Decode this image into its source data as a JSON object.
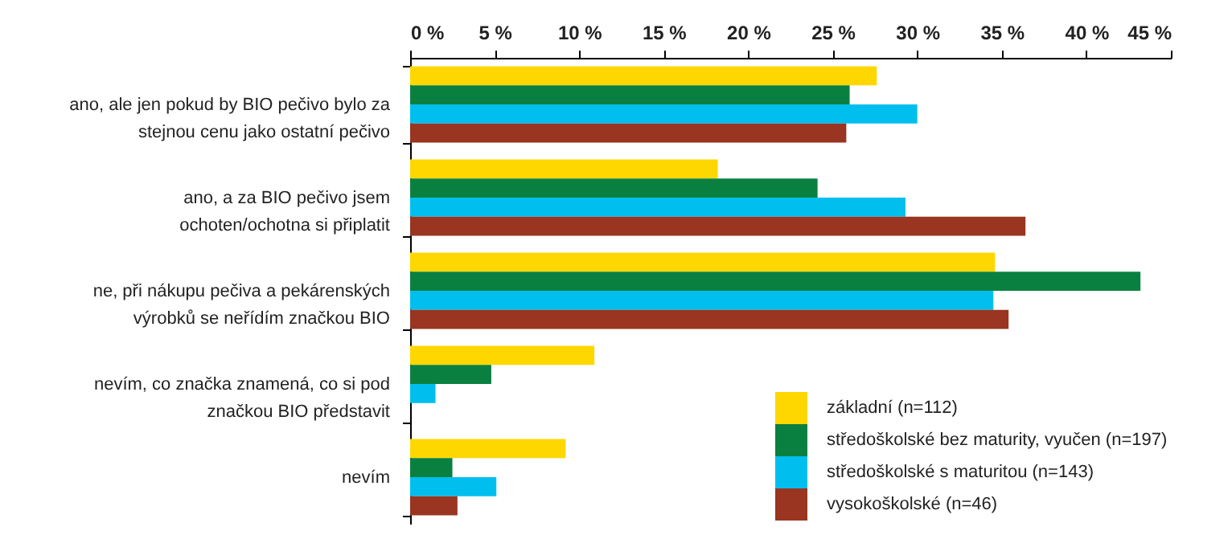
{
  "chart_data": {
    "type": "bar",
    "orientation": "horizontal",
    "categories": [
      "ano, ale jen pokud by BIO pečivo bylo za stejnou cenu jako ostatní pečivo",
      "ano, a za BIO pečivo jsem ochoten/ochotna si připlatit",
      "ne, při nákupu pečiva a pekárenských výrobků se neřídím značkou BIO",
      "nevím, co značka znamená, co si pod značkou BIO představit",
      "nevím"
    ],
    "series": [
      {
        "name": "základní (n=112)",
        "color": "#ffd700",
        "values": [
          27.6,
          18.2,
          34.6,
          10.9,
          9.2
        ]
      },
      {
        "name": "středoškolské bez maturity, vyučen (n=197)",
        "color": "#0a8040",
        "values": [
          26.0,
          24.1,
          43.2,
          4.8,
          2.5
        ]
      },
      {
        "name": "středoškolské s maturitou (n=143)",
        "color": "#00bfef",
        "values": [
          30.0,
          29.3,
          34.5,
          1.5,
          5.1
        ]
      },
      {
        "name": "vysokoškolské (n=46)",
        "color": "#993520",
        "values": [
          25.8,
          36.4,
          35.4,
          0,
          2.8
        ]
      }
    ],
    "xlim": [
      0,
      45
    ],
    "xticks": [
      {
        "value": 0,
        "label": "0 %"
      },
      {
        "value": 5,
        "label": "5 %"
      },
      {
        "value": 10,
        "label": "10 %"
      },
      {
        "value": 15,
        "label": "15 %"
      },
      {
        "value": 20,
        "label": "20 %"
      },
      {
        "value": 25,
        "label": "25 %"
      },
      {
        "value": 30,
        "label": "30 %"
      },
      {
        "value": 35,
        "label": "35 %"
      },
      {
        "value": 40,
        "label": "40 %"
      },
      {
        "value": 45,
        "label": "45 %"
      }
    ],
    "grid": false,
    "legend": "bottom right"
  }
}
